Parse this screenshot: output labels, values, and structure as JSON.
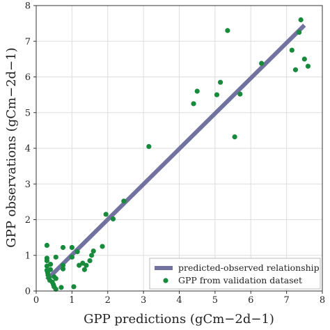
{
  "chart_data": {
    "type": "scatter",
    "title": "",
    "xlabel": "GPP predictions (gCm−2d−1)",
    "ylabel": "GPP observations (gCm−2d−1)",
    "xlim": [
      0,
      8
    ],
    "ylim": [
      0,
      8
    ],
    "xticks": [
      "0",
      "1",
      "2",
      "3",
      "4",
      "5",
      "6",
      "7",
      "8"
    ],
    "yticks": [
      "0",
      "1",
      "2",
      "3",
      "4",
      "5",
      "6",
      "7",
      "8"
    ],
    "grid": true,
    "legend_position": "bottom-right",
    "colors": {
      "line": "#7272a0",
      "points": "#178a3c"
    },
    "series": [
      {
        "name": "predicted-observed relationship",
        "kind": "line",
        "x": [
          0.3,
          7.5
        ],
        "y": [
          0.32,
          7.45
        ]
      },
      {
        "name": "GPP from validation dataset",
        "kind": "scatter",
        "points": [
          [
            0.3,
            1.28
          ],
          [
            0.3,
            0.92
          ],
          [
            0.3,
            0.85
          ],
          [
            0.3,
            0.7
          ],
          [
            0.3,
            0.58
          ],
          [
            0.32,
            0.52
          ],
          [
            0.33,
            0.45
          ],
          [
            0.35,
            0.38
          ],
          [
            0.38,
            0.3
          ],
          [
            0.4,
            0.75
          ],
          [
            0.4,
            0.6
          ],
          [
            0.45,
            0.25
          ],
          [
            0.48,
            0.18
          ],
          [
            0.5,
            0.4
          ],
          [
            0.5,
            0.12
          ],
          [
            0.55,
            0.35
          ],
          [
            0.55,
            0.05
          ],
          [
            0.55,
            0.95
          ],
          [
            0.7,
            0.1
          ],
          [
            0.75,
            0.72
          ],
          [
            0.75,
            0.62
          ],
          [
            0.75,
            1.22
          ],
          [
            1.0,
            0.95
          ],
          [
            1.0,
            1.22
          ],
          [
            1.05,
            0.12
          ],
          [
            1.15,
            1.1
          ],
          [
            1.2,
            0.72
          ],
          [
            1.3,
            0.78
          ],
          [
            1.35,
            0.6
          ],
          [
            1.4,
            0.72
          ],
          [
            1.5,
            0.85
          ],
          [
            1.55,
            1.0
          ],
          [
            1.6,
            1.12
          ],
          [
            1.85,
            1.25
          ],
          [
            1.95,
            2.15
          ],
          [
            2.15,
            2.02
          ],
          [
            2.45,
            2.52
          ],
          [
            3.15,
            4.05
          ],
          [
            4.4,
            5.25
          ],
          [
            4.5,
            5.6
          ],
          [
            5.05,
            5.5
          ],
          [
            5.15,
            5.85
          ],
          [
            5.35,
            7.3
          ],
          [
            5.55,
            4.32
          ],
          [
            5.7,
            5.52
          ],
          [
            6.3,
            6.38
          ],
          [
            7.15,
            6.75
          ],
          [
            7.25,
            6.2
          ],
          [
            7.35,
            7.25
          ],
          [
            7.4,
            7.6
          ],
          [
            7.5,
            6.5
          ],
          [
            7.6,
            6.3
          ]
        ]
      }
    ]
  }
}
